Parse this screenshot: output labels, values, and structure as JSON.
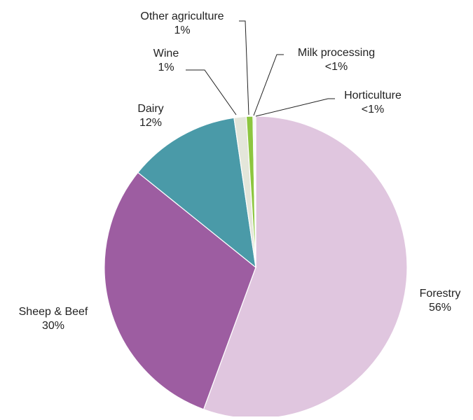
{
  "chart_data": {
    "type": "pie",
    "start_angle_deg": 0,
    "direction": "clockwise",
    "slices": [
      {
        "label": "Forestry",
        "value_label": "56%",
        "value": 55.6,
        "color": "#e0c6df"
      },
      {
        "label": "Sheep & Beef",
        "value_label": "30%",
        "value": 30.2,
        "color": "#9d5da1"
      },
      {
        "label": "Dairy",
        "value_label": "12%",
        "value": 11.9,
        "color": "#4a9aa8"
      },
      {
        "label": "Wine",
        "value_label": "1%",
        "value": 1.3,
        "color": "#e4e6da"
      },
      {
        "label": "Other agriculture",
        "value_label": "1%",
        "value": 0.7,
        "color": "#8dc63f"
      },
      {
        "label": "Milk processing",
        "value_label": "<1%",
        "value": 0.2,
        "color": "#f2f2f2"
      },
      {
        "label": "Horticulture",
        "value_label": "<1%",
        "value": 0.1,
        "color": "#c8e6a0"
      }
    ]
  }
}
